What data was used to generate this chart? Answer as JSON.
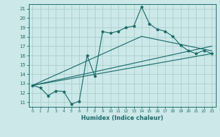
{
  "xlabel": "Humidex (Indice chaleur)",
  "bg_color": "#cce8e8",
  "grid_color": "#aacece",
  "line_color": "#1a6b6b",
  "xlim": [
    -0.5,
    23.5
  ],
  "ylim": [
    10.5,
    21.5
  ],
  "yticks": [
    11,
    12,
    13,
    14,
    15,
    16,
    17,
    18,
    19,
    20,
    21
  ],
  "xticks": [
    0,
    1,
    2,
    3,
    4,
    5,
    6,
    7,
    8,
    9,
    10,
    11,
    12,
    13,
    14,
    15,
    16,
    17,
    18,
    19,
    20,
    21,
    22,
    23
  ],
  "line1_x": [
    0,
    1,
    2,
    3,
    4,
    5,
    6,
    7,
    8,
    9,
    10,
    11,
    12,
    13,
    14,
    15,
    16,
    17,
    18,
    19,
    20,
    21,
    22,
    23
  ],
  "line1_y": [
    12.8,
    12.55,
    11.7,
    12.2,
    12.15,
    10.8,
    11.1,
    16.0,
    13.8,
    18.55,
    18.4,
    18.6,
    19.0,
    19.15,
    21.2,
    19.4,
    18.8,
    18.6,
    18.05,
    17.1,
    16.5,
    16.2,
    16.55,
    16.2
  ],
  "line2_x": [
    0,
    23
  ],
  "line2_y": [
    12.8,
    16.2
  ],
  "line3_x": [
    0,
    14,
    23
  ],
  "line3_y": [
    12.8,
    18.05,
    16.5
  ],
  "line4_x": [
    0,
    23
  ],
  "line4_y": [
    12.8,
    17.0
  ]
}
